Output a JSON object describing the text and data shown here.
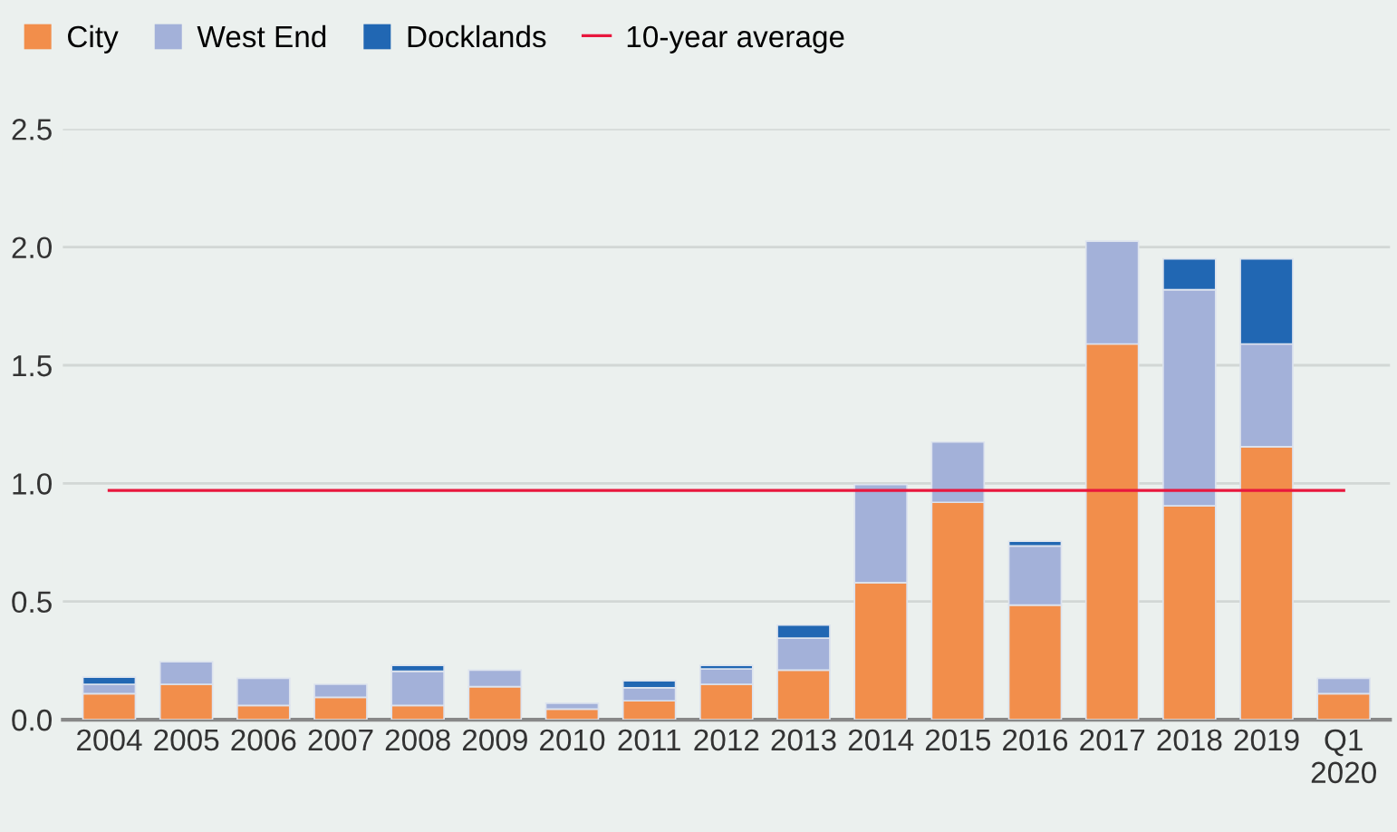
{
  "chart_data": {
    "type": "bar",
    "stacked": true,
    "categories": [
      "2004",
      "2005",
      "2006",
      "2007",
      "2008",
      "2009",
      "2010",
      "2011",
      "2012",
      "2013",
      "2014",
      "2015",
      "2016",
      "2017",
      "2018",
      "2019",
      "Q1\n2020"
    ],
    "series": [
      {
        "name": "City",
        "color": "#f28e4b",
        "values": [
          0.11,
          0.15,
          0.06,
          0.095,
          0.06,
          0.14,
          0.045,
          0.08,
          0.15,
          0.21,
          0.58,
          0.92,
          0.485,
          1.59,
          0.905,
          1.155,
          0.11
        ]
      },
      {
        "name": "West End",
        "color": "#a3b1d9",
        "values": [
          0.04,
          0.095,
          0.115,
          0.055,
          0.145,
          0.07,
          0.025,
          0.055,
          0.065,
          0.135,
          0.415,
          0.255,
          0.25,
          0.435,
          0.915,
          0.435,
          0.065
        ]
      },
      {
        "name": "Docklands",
        "color": "#2167b3",
        "values": [
          0.03,
          null,
          null,
          null,
          0.025,
          null,
          null,
          0.03,
          0.015,
          0.055,
          null,
          null,
          0.02,
          null,
          0.13,
          0.36,
          null
        ]
      }
    ],
    "ref_lines": [
      {
        "axis": "y",
        "value": 0.97,
        "label": "10-year average",
        "color": "#e8173d",
        "line_style": "solid"
      }
    ],
    "ylim": [
      0,
      2.5
    ],
    "yticks": [
      {
        "value": 0,
        "label": "0.0"
      },
      0.5,
      {
        "value": 1,
        "label": "1.0"
      },
      1.5,
      {
        "value": 2,
        "label": "2.0"
      },
      2.5
    ],
    "grid": "y",
    "legend": "top left"
  }
}
